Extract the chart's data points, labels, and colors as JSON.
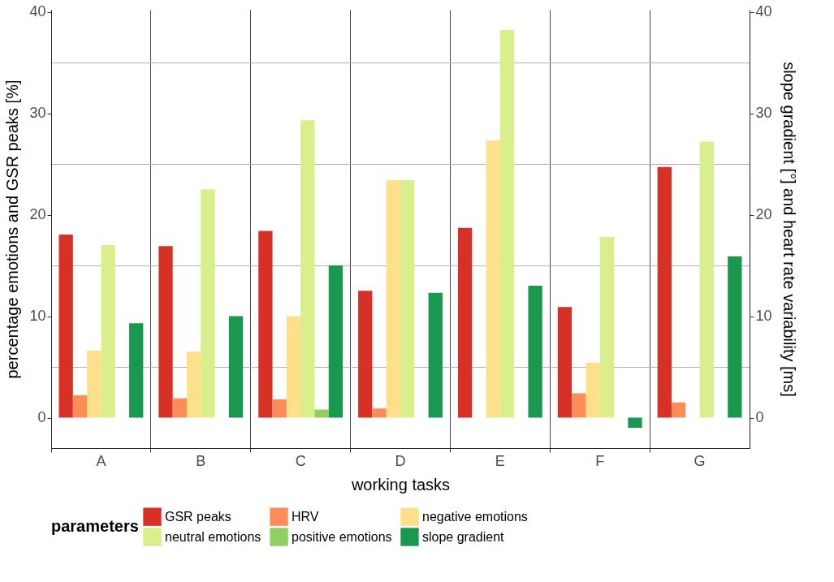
{
  "chart_data": {
    "type": "bar",
    "xlabel": "working tasks",
    "ylabel": "percentage emotions and GSR peaks [%]",
    "y2label": "slope gradient [°] and heart rate variability [ms]",
    "legend_title": "parameters",
    "legend": "bottom",
    "grid": true,
    "categories": [
      "A",
      "B",
      "C",
      "D",
      "E",
      "F",
      "G"
    ],
    "series": [
      {
        "name": "GSR peaks",
        "color": "#d73027",
        "values": [
          18.05,
          16.9,
          18.4,
          12.5,
          18.7,
          10.9,
          24.7
        ]
      },
      {
        "name": "HRV",
        "color": "#fc8d59",
        "axis": "y2",
        "values": [
          2.2,
          1.9,
          1.8,
          0.9,
          null,
          2.4,
          1.5
        ]
      },
      {
        "name": "negative emotions",
        "color": "#fee08b",
        "values": [
          6.6,
          6.5,
          10.0,
          23.4,
          27.3,
          5.4,
          null
        ]
      },
      {
        "name": "neutral emotions",
        "color": "#d9ef8b",
        "values": [
          17.0,
          22.5,
          29.3,
          23.4,
          38.2,
          17.8,
          27.2
        ]
      },
      {
        "name": "positive emotions",
        "color": "#91cf60",
        "values": [
          null,
          null,
          0.8,
          null,
          null,
          null,
          null
        ]
      },
      {
        "name": "slope gradient",
        "color": "#1a9850",
        "axis": "y2",
        "values": [
          9.3,
          10.0,
          15.0,
          12.3,
          13.0,
          -1.0,
          15.9
        ]
      }
    ],
    "ylim": [
      -3,
      40.2
    ],
    "yticks": [
      0,
      {
        "value": 5,
        "label": null
      },
      10,
      {
        "value": 15,
        "label": null
      },
      20,
      {
        "value": 25,
        "label": null
      },
      30,
      {
        "value": 35,
        "label": null
      },
      40
    ],
    "y2lim": [
      -3,
      40.2
    ],
    "y2ticks": [
      0,
      10,
      20,
      30,
      40
    ]
  }
}
